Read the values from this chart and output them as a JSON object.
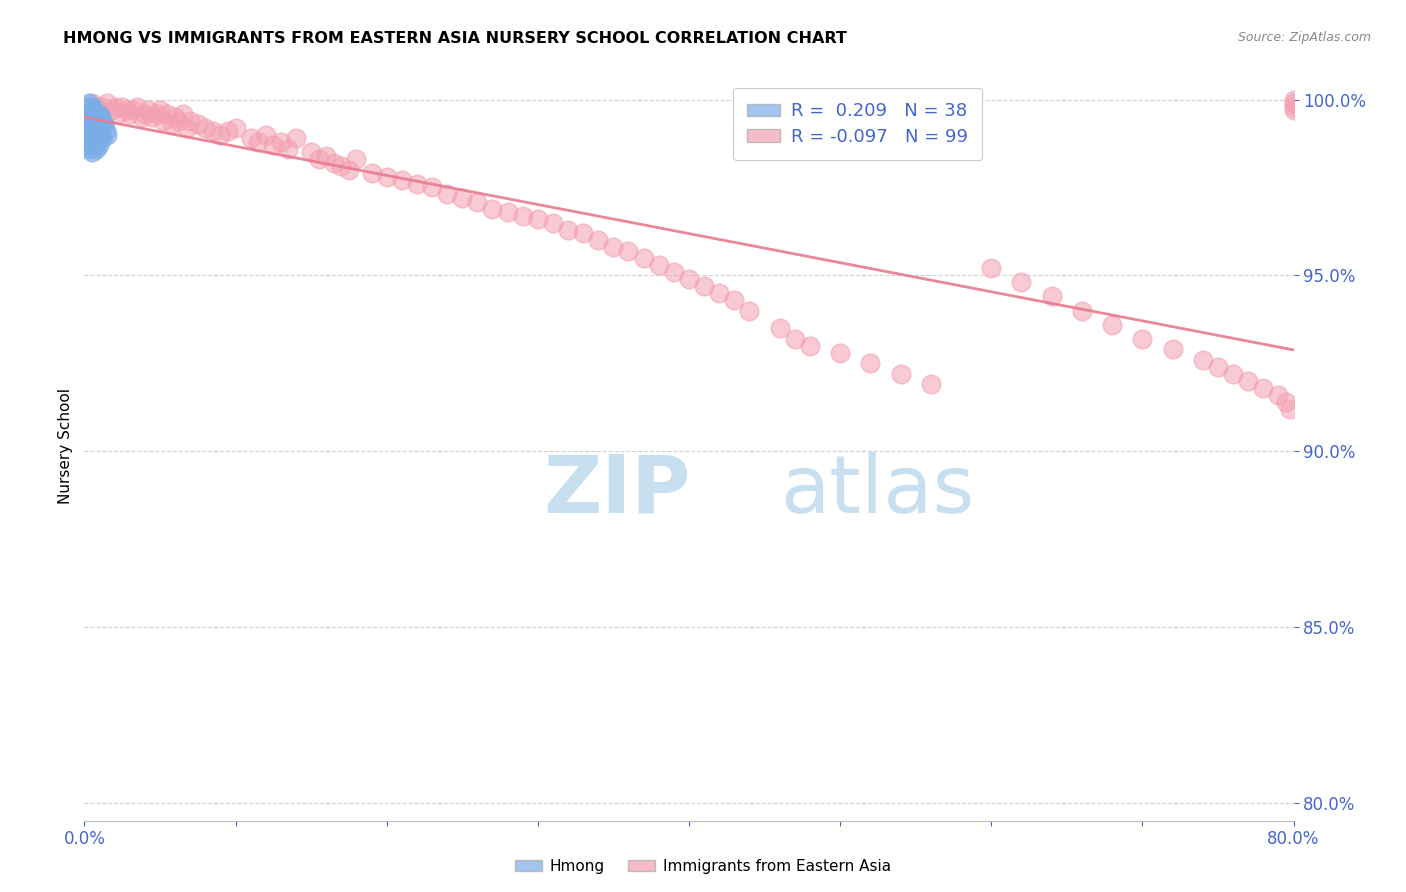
{
  "title": "HMONG VS IMMIGRANTS FROM EASTERN ASIA NURSERY SCHOOL CORRELATION CHART",
  "source": "Source: ZipAtlas.com",
  "ylabel": "Nursery School",
  "xlim": [
    0.0,
    0.8
  ],
  "ylim": [
    0.795,
    1.008
  ],
  "yticks": [
    0.8,
    0.85,
    0.9,
    0.95,
    1.0
  ],
  "xticks": [
    0.0,
    0.1,
    0.2,
    0.3,
    0.4,
    0.5,
    0.6,
    0.7,
    0.8
  ],
  "xtick_labels": [
    "0.0%",
    "",
    "",
    "",
    "",
    "",
    "",
    "",
    "80.0%"
  ],
  "legend_blue_r": "0.209",
  "legend_blue_n": "38",
  "legend_pink_r": "-0.097",
  "legend_pink_n": "99",
  "blue_color": "#7aade8",
  "pink_color": "#f4a0b0",
  "trend_blue_color": "#7aade8",
  "trend_pink_color": "#e87a90",
  "watermark_zip_color": "#c8dff0",
  "watermark_atlas_color": "#c8dff0",
  "grid_color": "#cccccc",
  "tick_color": "#4466cc",
  "blue_x": [
    0.001,
    0.001,
    0.002,
    0.002,
    0.002,
    0.003,
    0.003,
    0.003,
    0.003,
    0.004,
    0.004,
    0.004,
    0.004,
    0.005,
    0.005,
    0.005,
    0.005,
    0.006,
    0.006,
    0.006,
    0.007,
    0.007,
    0.007,
    0.008,
    0.008,
    0.008,
    0.009,
    0.009,
    0.01,
    0.01,
    0.01,
    0.011,
    0.011,
    0.012,
    0.012,
    0.013,
    0.014,
    0.015
  ],
  "blue_y": [
    0.998,
    0.995,
    0.993,
    0.99,
    0.987,
    0.999,
    0.996,
    0.992,
    0.988,
    0.997,
    0.994,
    0.991,
    0.986,
    0.998,
    0.995,
    0.99,
    0.985,
    0.997,
    0.993,
    0.989,
    0.996,
    0.992,
    0.987,
    0.995,
    0.991,
    0.986,
    0.994,
    0.989,
    0.996,
    0.992,
    0.987,
    0.995,
    0.99,
    0.994,
    0.989,
    0.993,
    0.991,
    0.99
  ],
  "pink_x": [
    0.005,
    0.008,
    0.01,
    0.012,
    0.015,
    0.018,
    0.02,
    0.022,
    0.025,
    0.028,
    0.03,
    0.032,
    0.035,
    0.038,
    0.04,
    0.042,
    0.045,
    0.048,
    0.05,
    0.052,
    0.055,
    0.058,
    0.06,
    0.062,
    0.065,
    0.068,
    0.07,
    0.075,
    0.08,
    0.085,
    0.09,
    0.095,
    0.1,
    0.11,
    0.115,
    0.12,
    0.125,
    0.13,
    0.135,
    0.14,
    0.15,
    0.155,
    0.16,
    0.165,
    0.17,
    0.175,
    0.18,
    0.19,
    0.2,
    0.21,
    0.22,
    0.23,
    0.24,
    0.25,
    0.26,
    0.27,
    0.28,
    0.29,
    0.3,
    0.31,
    0.32,
    0.33,
    0.34,
    0.35,
    0.36,
    0.37,
    0.38,
    0.39,
    0.4,
    0.41,
    0.42,
    0.43,
    0.44,
    0.46,
    0.47,
    0.48,
    0.5,
    0.52,
    0.54,
    0.56,
    0.6,
    0.62,
    0.64,
    0.66,
    0.68,
    0.7,
    0.72,
    0.74,
    0.75,
    0.76,
    0.77,
    0.78,
    0.79,
    0.795,
    0.798,
    0.8,
    0.8,
    0.8,
    0.8
  ],
  "pink_y": [
    0.999,
    0.998,
    0.997,
    0.998,
    0.999,
    0.997,
    0.998,
    0.996,
    0.998,
    0.997,
    0.996,
    0.997,
    0.998,
    0.995,
    0.996,
    0.997,
    0.995,
    0.996,
    0.997,
    0.994,
    0.996,
    0.993,
    0.995,
    0.994,
    0.996,
    0.992,
    0.994,
    0.993,
    0.992,
    0.991,
    0.99,
    0.991,
    0.992,
    0.989,
    0.988,
    0.99,
    0.987,
    0.988,
    0.986,
    0.989,
    0.985,
    0.983,
    0.984,
    0.982,
    0.981,
    0.98,
    0.983,
    0.979,
    0.978,
    0.977,
    0.976,
    0.975,
    0.973,
    0.972,
    0.971,
    0.969,
    0.968,
    0.967,
    0.966,
    0.965,
    0.963,
    0.962,
    0.96,
    0.958,
    0.957,
    0.955,
    0.953,
    0.951,
    0.949,
    0.947,
    0.945,
    0.943,
    0.94,
    0.935,
    0.932,
    0.93,
    0.928,
    0.925,
    0.922,
    0.919,
    0.952,
    0.948,
    0.944,
    0.94,
    0.936,
    0.932,
    0.929,
    0.926,
    0.924,
    0.922,
    0.92,
    0.918,
    0.916,
    0.914,
    0.912,
    1.0,
    0.999,
    0.998,
    0.997
  ]
}
